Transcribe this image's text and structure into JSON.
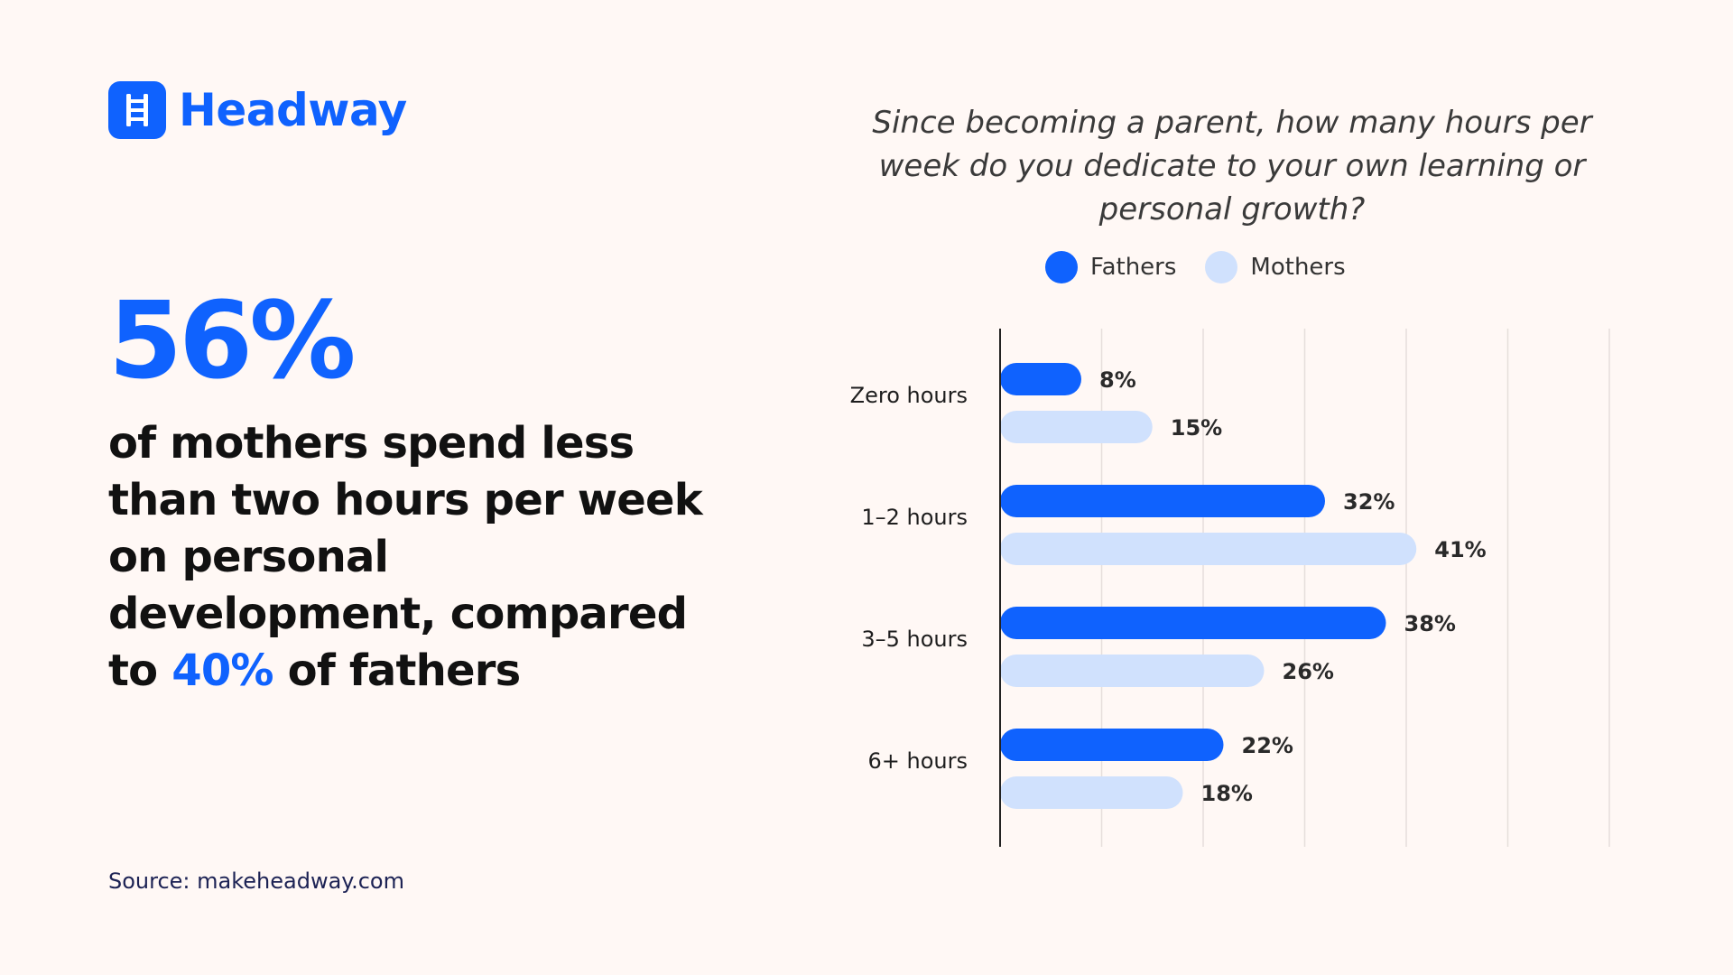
{
  "brand": {
    "name": "Headway",
    "logo_icon": "ladder-icon"
  },
  "headline": {
    "stat": "56%",
    "text_before": " of mothers spend less than two hours per week on personal development, compared to ",
    "accent": "40%",
    "text_after": " of fathers"
  },
  "source": "Source: makeheadway.com",
  "colors": {
    "accent": "#0f62fe",
    "fathers": "#0f62fe",
    "mothers": "#d0e1fd",
    "background": "#fff8f5"
  },
  "chart_data": {
    "type": "bar",
    "orientation": "horizontal",
    "title": "Since becoming a parent, how many hours per week do you dedicate to your own learning or personal growth?",
    "categories": [
      "Zero hours",
      "1–2 hours",
      "3–5 hours",
      "6+ hours"
    ],
    "series": [
      {
        "name": "Fathers",
        "values": [
          8,
          32,
          38,
          22
        ],
        "labels": [
          "8%",
          "32%",
          "38%",
          "22%"
        ],
        "color": "#0f62fe"
      },
      {
        "name": "Mothers",
        "values": [
          15,
          41,
          26,
          18
        ],
        "labels": [
          "15%",
          "41%",
          "26%",
          "18%"
        ],
        "color": "#d0e1fd"
      }
    ],
    "xlim": [
      0,
      60
    ],
    "grid": true,
    "legend_position": "top-center",
    "value_labels": true
  }
}
